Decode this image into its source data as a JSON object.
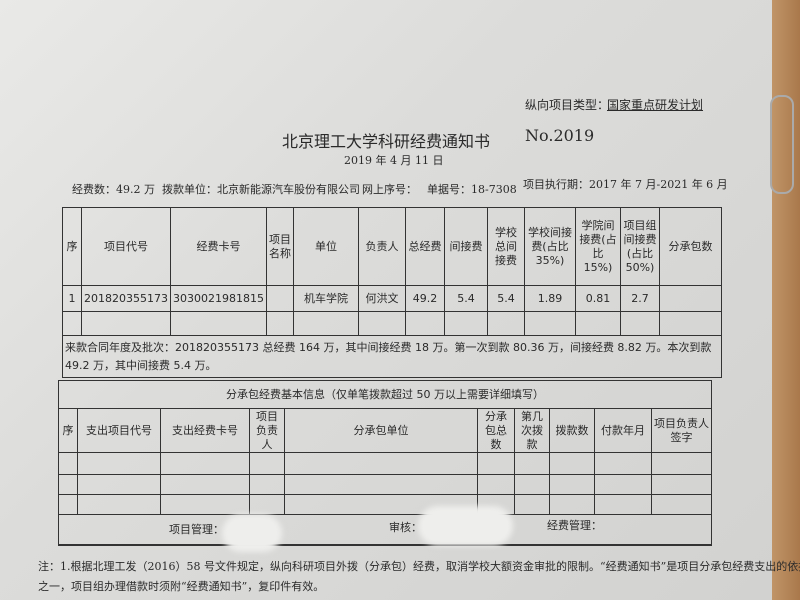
{
  "project_type_label": "纵向项目类型：",
  "project_type_value": "国家重点研发计划",
  "title": "北京理工大学科研经费通知书",
  "number": "No.2019",
  "date": "2019 年 4 月 11 日",
  "info": {
    "funds": "经费数：49.2 万",
    "payer": "拨款单位：北京新能源汽车股份有限公司",
    "online_no": "网上序号：",
    "bill_no": "单据号：18-7308",
    "period": "项目执行期：2017 年 7 月-2021 年 6 月"
  },
  "main_table": {
    "headers": [
      "序",
      "项目代号",
      "经费卡号",
      "项目名称",
      "单位",
      "负责人",
      "总经费",
      "间接费",
      "学校总间接费",
      "学校间接费(占比 35%)",
      "学院间接费(占比 15%)",
      "项目组间接费(占比 50%)",
      "分承包数"
    ],
    "rows": [
      [
        "1",
        "201820355173",
        "3030021981815",
        "",
        "机车学院",
        "何洪文",
        "49.2",
        "5.4",
        "5.4",
        "1.89",
        "0.81",
        "2.7",
        ""
      ]
    ],
    "note": "来款合同年度及批次：201820355173 总经费 164 万，其中间接经费 18 万。第一次到款 80.36 万，间接经费 8.82 万。本次到款 49.2 万，其中间接费 5.4 万。"
  },
  "sub_table": {
    "title": "分承包经费基本信息（仅单笔拨款超过 50 万以上需要详细填写）",
    "headers": [
      "序",
      "支出项目代号",
      "支出经费卡号",
      "项目负责人",
      "分承包单位",
      "分承包总数",
      "第几次拨款",
      "拨款数",
      "付款年月",
      "项目负责人签字"
    ]
  },
  "signatures": {
    "project": "项目管理：",
    "review": "审核：",
    "finance": "经费管理："
  },
  "notes": [
    "注：1.根据北理工发（2016）58 号文件规定，纵向科研项目外拨（分承包）经费，取消学校大额资金审批的限制。“经费通知书”是项目分承包经费支出的依据",
    "之一，项目组办理借款时须附“经费通知书”，复印件有效。"
  ]
}
